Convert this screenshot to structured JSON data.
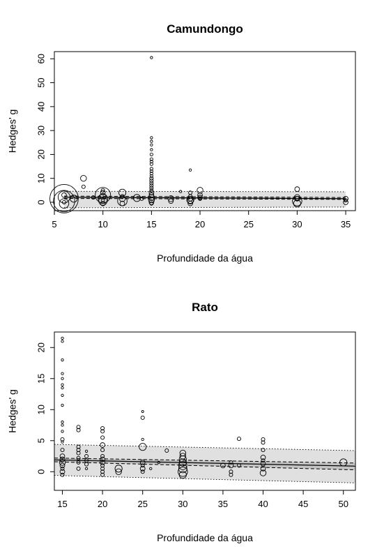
{
  "chart_data": [
    {
      "type": "scatter",
      "title": "Camundongo",
      "xlabel": "Profundidade da água",
      "ylabel": "Hedges' g",
      "xlim": [
        5,
        36
      ],
      "ylim": [
        -3.5,
        63
      ],
      "xticks": [
        5,
        10,
        15,
        20,
        25,
        30,
        35
      ],
      "yticks": [
        0,
        10,
        20,
        30,
        40,
        50,
        60
      ],
      "regression": {
        "x_range": [
          6,
          35
        ],
        "fit": [
          2.1,
          1.5
        ],
        "ci_lower": [
          1.6,
          1.2
        ],
        "ci_upper": [
          2.6,
          2.0
        ],
        "pi_lower": [
          -2.3,
          -2.0
        ],
        "pi_upper": [
          4.6,
          4.4
        ]
      },
      "points": [
        {
          "x": 6,
          "y": 1.5,
          "w": 24
        },
        {
          "x": 6,
          "y": 0.5,
          "w": 18
        },
        {
          "x": 6,
          "y": 2.2,
          "w": 10
        },
        {
          "x": 6,
          "y": -0.5,
          "w": 8
        },
        {
          "x": 6,
          "y": 3,
          "w": 4
        },
        {
          "x": 6,
          "y": 0,
          "w": 3
        },
        {
          "x": 7,
          "y": 1.5,
          "w": 6
        },
        {
          "x": 8,
          "y": 10,
          "w": 5
        },
        {
          "x": 8,
          "y": 6.5,
          "w": 3
        },
        {
          "x": 9,
          "y": 2,
          "w": 3
        },
        {
          "x": 10,
          "y": 3,
          "w": 13
        },
        {
          "x": 10,
          "y": 1.5,
          "w": 8
        },
        {
          "x": 10,
          "y": 0.5,
          "w": 7
        },
        {
          "x": 10,
          "y": 2.5,
          "w": 5
        },
        {
          "x": 10,
          "y": 4,
          "w": 4
        },
        {
          "x": 10,
          "y": -0.5,
          "w": 4
        },
        {
          "x": 10,
          "y": 5,
          "w": 3
        },
        {
          "x": 10,
          "y": 1,
          "w": 3
        },
        {
          "x": 12,
          "y": 4,
          "w": 6
        },
        {
          "x": 12,
          "y": 0.5,
          "w": 8
        },
        {
          "x": 12,
          "y": 1.5,
          "w": 5
        },
        {
          "x": 12,
          "y": -0.5,
          "w": 4
        },
        {
          "x": 12,
          "y": 2.5,
          "w": 3
        },
        {
          "x": 13.5,
          "y": 1.8,
          "w": 6
        },
        {
          "x": 14,
          "y": 1.5,
          "w": 3
        },
        {
          "x": 15,
          "y": 60.5,
          "w": 2
        },
        {
          "x": 15,
          "y": 27,
          "w": 2
        },
        {
          "x": 15,
          "y": 25.5,
          "w": 2
        },
        {
          "x": 15,
          "y": 24,
          "w": 2
        },
        {
          "x": 15,
          "y": 22,
          "w": 2
        },
        {
          "x": 15,
          "y": 20,
          "w": 2.5
        },
        {
          "x": 15,
          "y": 18,
          "w": 2.5
        },
        {
          "x": 15,
          "y": 17,
          "w": 2.5
        },
        {
          "x": 15,
          "y": 16,
          "w": 2.5
        },
        {
          "x": 15,
          "y": 14,
          "w": 2.5
        },
        {
          "x": 15,
          "y": 13,
          "w": 2.5
        },
        {
          "x": 15,
          "y": 12,
          "w": 2.5
        },
        {
          "x": 15,
          "y": 11,
          "w": 2.5
        },
        {
          "x": 15,
          "y": 10,
          "w": 3
        },
        {
          "x": 15,
          "y": 9,
          "w": 3
        },
        {
          "x": 15,
          "y": 8,
          "w": 3
        },
        {
          "x": 15,
          "y": 7,
          "w": 3
        },
        {
          "x": 15,
          "y": 6,
          "w": 3
        },
        {
          "x": 15,
          "y": 5,
          "w": 3
        },
        {
          "x": 15,
          "y": 4,
          "w": 4
        },
        {
          "x": 15,
          "y": 3,
          "w": 4
        },
        {
          "x": 15,
          "y": 2,
          "w": 5
        },
        {
          "x": 15,
          "y": 1,
          "w": 5
        },
        {
          "x": 15,
          "y": 0,
          "w": 4
        },
        {
          "x": 15,
          "y": -0.5,
          "w": 3
        },
        {
          "x": 17,
          "y": 1.5,
          "w": 5
        },
        {
          "x": 17,
          "y": 0.5,
          "w": 4
        },
        {
          "x": 18,
          "y": 4.5,
          "w": 2
        },
        {
          "x": 19,
          "y": 13.5,
          "w": 2
        },
        {
          "x": 19,
          "y": 4,
          "w": 3
        },
        {
          "x": 19,
          "y": 2.5,
          "w": 3
        },
        {
          "x": 19,
          "y": 1.5,
          "w": 4
        },
        {
          "x": 19,
          "y": 0.5,
          "w": 5
        },
        {
          "x": 19,
          "y": -0.5,
          "w": 4
        },
        {
          "x": 19,
          "y": 1,
          "w": 6
        },
        {
          "x": 20,
          "y": 5,
          "w": 5
        },
        {
          "x": 20,
          "y": 3,
          "w": 4
        },
        {
          "x": 20,
          "y": 2,
          "w": 4
        },
        {
          "x": 20,
          "y": 1.5,
          "w": 3
        },
        {
          "x": 30,
          "y": 5.5,
          "w": 4
        },
        {
          "x": 30,
          "y": 2,
          "w": 5
        },
        {
          "x": 30,
          "y": 0.5,
          "w": 8
        },
        {
          "x": 30,
          "y": -0.5,
          "w": 6
        },
        {
          "x": 30,
          "y": 1.5,
          "w": 4
        },
        {
          "x": 35,
          "y": 1.5,
          "w": 4
        },
        {
          "x": 35,
          "y": 0,
          "w": 4
        },
        {
          "x": 35,
          "y": 0.8,
          "w": 3
        }
      ]
    },
    {
      "type": "scatter",
      "title": "Rato",
      "xlabel": "Profundidade da água",
      "ylabel": "Hedges' g",
      "xlim": [
        14,
        51.5
      ],
      "ylim": [
        -3,
        22.5
      ],
      "xticks": [
        15,
        20,
        25,
        30,
        35,
        40,
        45,
        50
      ],
      "yticks": [
        0,
        5,
        10,
        15,
        20
      ],
      "regression": {
        "x_range": [
          14,
          51.5
        ],
        "fit": [
          1.9,
          0.9
        ],
        "ci_lower": [
          1.6,
          0.3
        ],
        "ci_upper": [
          2.2,
          1.4
        ],
        "pi_lower": [
          -0.6,
          -1.8
        ],
        "pi_upper": [
          4.4,
          3.4
        ]
      },
      "points": [
        {
          "x": 15,
          "y": 21.5,
          "w": 2
        },
        {
          "x": 15,
          "y": 21,
          "w": 2
        },
        {
          "x": 15,
          "y": 18,
          "w": 2
        },
        {
          "x": 15,
          "y": 15.8,
          "w": 2
        },
        {
          "x": 15,
          "y": 15,
          "w": 2
        },
        {
          "x": 15,
          "y": 14,
          "w": 2
        },
        {
          "x": 15,
          "y": 13.5,
          "w": 2
        },
        {
          "x": 15,
          "y": 12.3,
          "w": 2
        },
        {
          "x": 15,
          "y": 10.7,
          "w": 2
        },
        {
          "x": 15,
          "y": 8,
          "w": 2
        },
        {
          "x": 15,
          "y": 7.5,
          "w": 2
        },
        {
          "x": 15,
          "y": 6.5,
          "w": 2
        },
        {
          "x": 15,
          "y": 5.2,
          "w": 3
        },
        {
          "x": 15,
          "y": 4.8,
          "w": 2
        },
        {
          "x": 15,
          "y": 3.5,
          "w": 3
        },
        {
          "x": 15,
          "y": 2.5,
          "w": 4
        },
        {
          "x": 15,
          "y": 2,
          "w": 4
        },
        {
          "x": 15,
          "y": 1.5,
          "w": 5
        },
        {
          "x": 15,
          "y": 1,
          "w": 4
        },
        {
          "x": 15,
          "y": 0.5,
          "w": 3
        },
        {
          "x": 15,
          "y": 0,
          "w": 4
        },
        {
          "x": 15,
          "y": -0.5,
          "w": 3
        },
        {
          "x": 17,
          "y": 7.2,
          "w": 3
        },
        {
          "x": 17,
          "y": 6.7,
          "w": 3
        },
        {
          "x": 17,
          "y": 4,
          "w": 3
        },
        {
          "x": 17,
          "y": 3.5,
          "w": 3
        },
        {
          "x": 17,
          "y": 3,
          "w": 3
        },
        {
          "x": 17,
          "y": 2.2,
          "w": 3
        },
        {
          "x": 17,
          "y": 1.5,
          "w": 3
        },
        {
          "x": 17,
          "y": 0.5,
          "w": 3
        },
        {
          "x": 18,
          "y": 3.3,
          "w": 2
        },
        {
          "x": 18,
          "y": 2.5,
          "w": 3
        },
        {
          "x": 18,
          "y": 1.8,
          "w": 3
        },
        {
          "x": 18,
          "y": 1.2,
          "w": 3
        },
        {
          "x": 18,
          "y": 0.5,
          "w": 2
        },
        {
          "x": 20,
          "y": 7,
          "w": 3
        },
        {
          "x": 20,
          "y": 6.5,
          "w": 3
        },
        {
          "x": 20,
          "y": 5.5,
          "w": 3
        },
        {
          "x": 20,
          "y": 4.3,
          "w": 4
        },
        {
          "x": 20,
          "y": 3.5,
          "w": 3
        },
        {
          "x": 20,
          "y": 2.5,
          "w": 3
        },
        {
          "x": 20,
          "y": 2,
          "w": 4
        },
        {
          "x": 20,
          "y": 1.5,
          "w": 4
        },
        {
          "x": 20,
          "y": 1,
          "w": 3
        },
        {
          "x": 20,
          "y": 0.5,
          "w": 3
        },
        {
          "x": 20,
          "y": 0,
          "w": 3
        },
        {
          "x": 20,
          "y": -0.5,
          "w": 3
        },
        {
          "x": 22,
          "y": 0.5,
          "w": 6
        },
        {
          "x": 22,
          "y": 0,
          "w": 5
        },
        {
          "x": 25,
          "y": 9.7,
          "w": 1.5
        },
        {
          "x": 25,
          "y": 8.7,
          "w": 3
        },
        {
          "x": 25,
          "y": 5.2,
          "w": 2
        },
        {
          "x": 25,
          "y": 4,
          "w": 6
        },
        {
          "x": 25,
          "y": 1.5,
          "w": 4
        },
        {
          "x": 25,
          "y": 1,
          "w": 3
        },
        {
          "x": 25,
          "y": 0.5,
          "w": 4
        },
        {
          "x": 25,
          "y": 0,
          "w": 3
        },
        {
          "x": 26,
          "y": 0.5,
          "w": 2
        },
        {
          "x": 27,
          "y": 1.5,
          "w": 2
        },
        {
          "x": 28,
          "y": 3.4,
          "w": 3
        },
        {
          "x": 30,
          "y": 3,
          "w": 5
        },
        {
          "x": 30,
          "y": 2.5,
          "w": 5
        },
        {
          "x": 30,
          "y": 2,
          "w": 6
        },
        {
          "x": 30,
          "y": 1.5,
          "w": 6
        },
        {
          "x": 30,
          "y": 1,
          "w": 7
        },
        {
          "x": 30,
          "y": 0.5,
          "w": 7
        },
        {
          "x": 30,
          "y": 0,
          "w": 8
        },
        {
          "x": 30,
          "y": -0.5,
          "w": 6
        },
        {
          "x": 35,
          "y": 1,
          "w": 4
        },
        {
          "x": 36,
          "y": 1.5,
          "w": 3
        },
        {
          "x": 36,
          "y": 1,
          "w": 4
        },
        {
          "x": 36,
          "y": 0,
          "w": 3
        },
        {
          "x": 36,
          "y": -0.5,
          "w": 3
        },
        {
          "x": 37,
          "y": 5.3,
          "w": 3
        },
        {
          "x": 37,
          "y": 1,
          "w": 3
        },
        {
          "x": 40,
          "y": 5.2,
          "w": 3
        },
        {
          "x": 40,
          "y": 4.7,
          "w": 3
        },
        {
          "x": 40,
          "y": 3.5,
          "w": 3
        },
        {
          "x": 40,
          "y": 2.3,
          "w": 4
        },
        {
          "x": 40,
          "y": 1.8,
          "w": 3
        },
        {
          "x": 40,
          "y": 1.3,
          "w": 4
        },
        {
          "x": 40,
          "y": 0.5,
          "w": 4
        },
        {
          "x": 40,
          "y": -0.2,
          "w": 5
        },
        {
          "x": 50,
          "y": 1.5,
          "w": 6
        }
      ]
    }
  ]
}
